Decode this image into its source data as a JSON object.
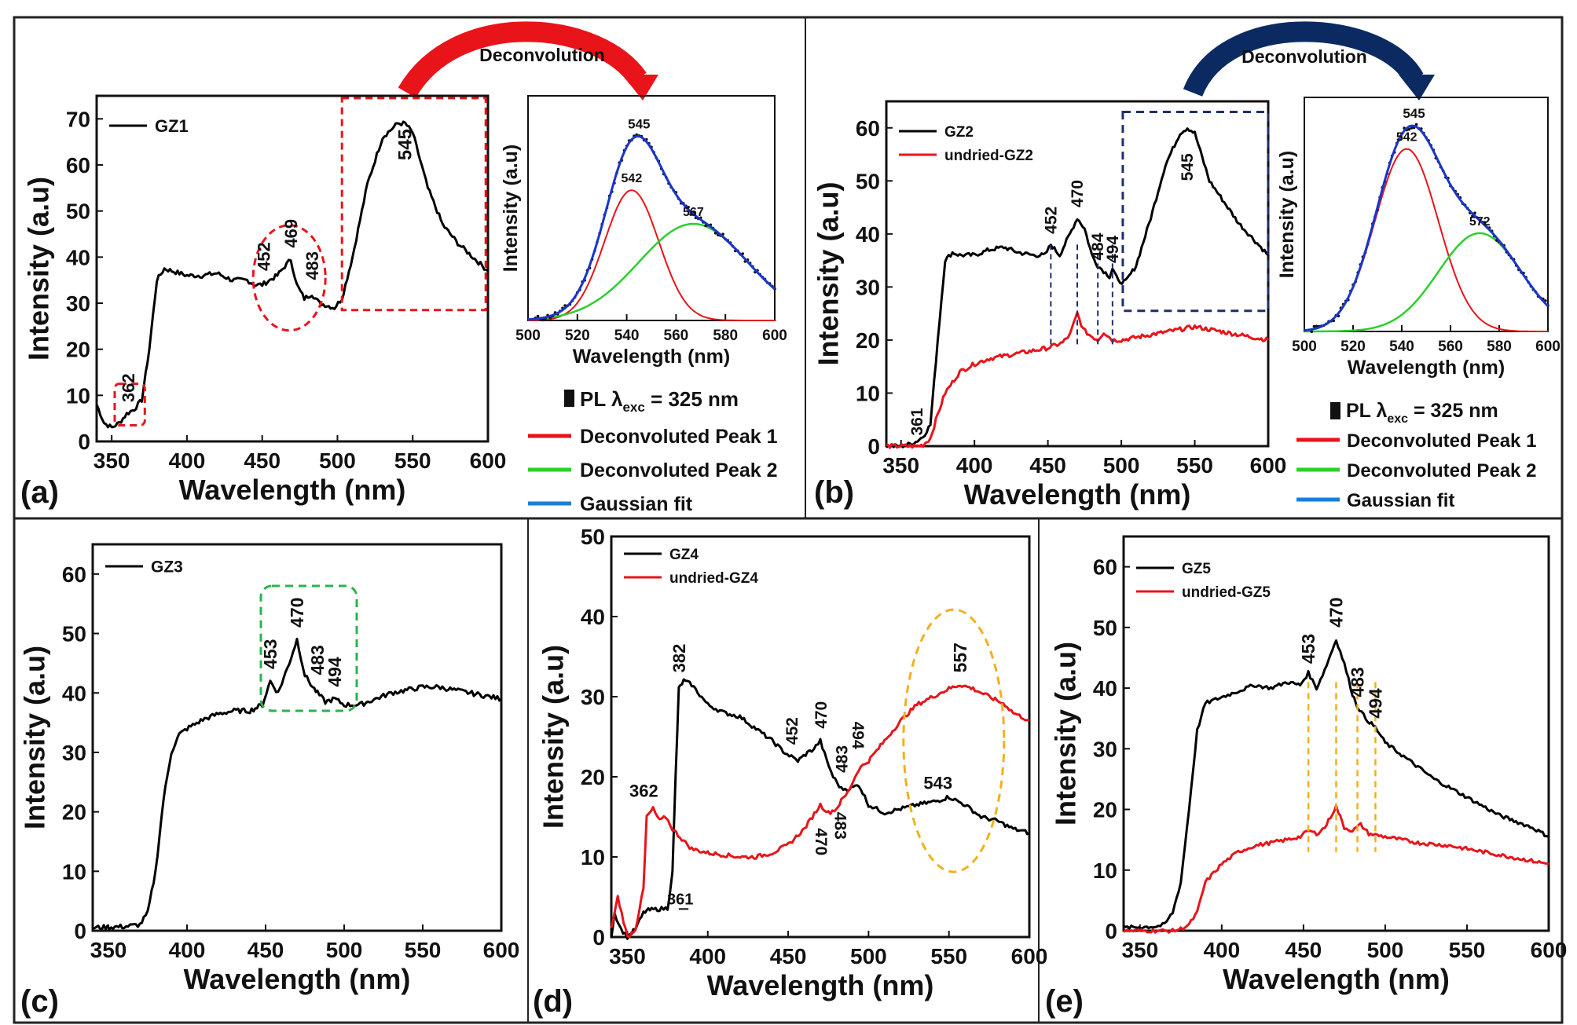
{
  "chart_data": [
    {
      "panel": "a",
      "type": "line",
      "xlabel": "Wavelength (nm)",
      "ylabel": "Intensity (a.u)",
      "xlim": [
        340,
        600
      ],
      "ylim": [
        0,
        75
      ],
      "xticks": [
        350,
        400,
        450,
        500,
        550,
        600
      ],
      "yticks": [
        0,
        10,
        20,
        30,
        40,
        50,
        60,
        70
      ],
      "series": [
        {
          "name": "GZ1",
          "color": "#000000",
          "x": [
            340,
            345,
            350,
            355,
            360,
            365,
            370,
            375,
            380,
            385,
            390,
            400,
            410,
            420,
            430,
            440,
            445,
            450,
            455,
            460,
            465,
            469,
            473,
            478,
            483,
            488,
            493,
            498,
            503,
            510,
            520,
            530,
            540,
            545,
            550,
            560,
            570,
            580,
            590,
            600
          ],
          "y": [
            8,
            4,
            3,
            4,
            6,
            7,
            9,
            20,
            35,
            37.5,
            37,
            36,
            36,
            36.5,
            35,
            35,
            34,
            34,
            35,
            36,
            38,
            39.5,
            34,
            31,
            32,
            30,
            29.5,
            29,
            31,
            40,
            56,
            66,
            69,
            69,
            67,
            55,
            47,
            43,
            40,
            37
          ]
        }
      ],
      "annotations": [
        {
          "x": 362,
          "y": 8.5,
          "text": "362"
        },
        {
          "x": 452,
          "y": 37,
          "text": "452"
        },
        {
          "x": 469,
          "y": 42,
          "text": "469"
        },
        {
          "x": 483,
          "y": 35,
          "text": "483"
        },
        {
          "x": 545,
          "y": 61,
          "text": "545"
        }
      ],
      "callout_label": "Deconvolution"
    },
    {
      "panel": "a-inset",
      "type": "line",
      "xlabel": "Wavelength (nm)",
      "ylabel": "Intensity (a.u)",
      "xlim": [
        500,
        600
      ],
      "ylim": [
        0,
        1
      ],
      "xticks": [
        500,
        520,
        540,
        560,
        580,
        600
      ],
      "series": [
        {
          "name": "PL λexc = 325 nm",
          "color": "#000000",
          "style": "points",
          "x": [],
          "y": []
        },
        {
          "name": "Deconvoluted Peak 1",
          "color": "#e8141a",
          "center": 542,
          "amplitude": 0.58,
          "width": 11
        },
        {
          "name": "Deconvoluted Peak 2",
          "color": "#2ccf2c",
          "center": 567,
          "amplitude": 0.43,
          "width": 22
        },
        {
          "name": "Gaussian fit",
          "color": "#1a36c8"
        }
      ],
      "annotations": [
        {
          "x": 545,
          "text": "545"
        },
        {
          "x": 542,
          "text": "542"
        },
        {
          "x": 567,
          "text": "567"
        }
      ]
    },
    {
      "panel": "b",
      "type": "line",
      "xlabel": "Wavelength (nm)",
      "ylabel": "Intensity (a.u)",
      "xlim": [
        340,
        600
      ],
      "ylim": [
        0,
        65
      ],
      "xticks": [
        350,
        400,
        450,
        500,
        550,
        600
      ],
      "yticks": [
        0,
        10,
        20,
        30,
        40,
        50,
        60
      ],
      "series": [
        {
          "name": "GZ2",
          "color": "#000000",
          "x": [
            340,
            350,
            355,
            360,
            365,
            370,
            375,
            380,
            385,
            390,
            400,
            410,
            420,
            430,
            440,
            448,
            452,
            458,
            465,
            470,
            475,
            480,
            484,
            488,
            492,
            494,
            498,
            503,
            510,
            520,
            530,
            540,
            545,
            550,
            560,
            570,
            580,
            590,
            600
          ],
          "y": [
            0,
            0,
            0.3,
            0.8,
            1.8,
            4,
            20,
            35,
            36.5,
            36,
            36,
            37,
            37.5,
            36.5,
            36,
            36,
            38,
            36,
            40,
            43,
            41,
            36,
            34,
            33,
            32,
            33.5,
            31,
            31,
            34,
            43,
            53,
            59,
            60,
            59,
            50,
            46,
            42,
            39,
            36
          ]
        },
        {
          "name": "undried-GZ2",
          "color": "#e8141a",
          "x": [
            340,
            360,
            365,
            370,
            375,
            380,
            385,
            390,
            400,
            410,
            420,
            430,
            440,
            450,
            460,
            465,
            470,
            474,
            478,
            484,
            488,
            494,
            500,
            520,
            540,
            550,
            560,
            580,
            600
          ],
          "y": [
            0,
            0,
            0.2,
            1.5,
            6,
            10,
            12,
            14,
            15.5,
            16.5,
            17,
            17.5,
            18,
            18.5,
            19.5,
            21,
            25,
            22,
            21,
            20,
            21.5,
            20,
            20,
            21,
            22,
            22.5,
            22,
            21,
            20
          ]
        }
      ],
      "annotations": [
        {
          "x": 361,
          "y": 2,
          "text": "361"
        },
        {
          "x": 452,
          "y": 40,
          "text": "452"
        },
        {
          "x": 470,
          "y": 45,
          "text": "470"
        },
        {
          "x": 484,
          "y": 35,
          "text": "484"
        },
        {
          "x": 494,
          "y": 34.5,
          "text": "494"
        },
        {
          "x": 545,
          "y": 50,
          "text": "545"
        }
      ],
      "callout_label": "Deconvolution"
    },
    {
      "panel": "b-inset",
      "type": "line",
      "xlabel": "Wavelength (nm)",
      "ylabel": "Intensity (a.u)",
      "xlim": [
        500,
        600
      ],
      "ylim": [
        0,
        1
      ],
      "xticks": [
        500,
        520,
        540,
        560,
        580,
        600
      ],
      "series": [
        {
          "name": "PL λexc = 325 nm",
          "color": "#000000",
          "style": "points",
          "x": [],
          "y": []
        },
        {
          "name": "Deconvoluted Peak 1",
          "color": "#e8141a",
          "center": 542,
          "amplitude": 0.78,
          "width": 13
        },
        {
          "name": "Deconvoluted Peak 2",
          "color": "#2ccf2c",
          "center": 572,
          "amplitude": 0.42,
          "width": 17
        },
        {
          "name": "Gaussian fit",
          "color": "#1a36c8"
        }
      ],
      "annotations": [
        {
          "x": 545,
          "text": "545"
        },
        {
          "x": 542,
          "text": "542"
        },
        {
          "x": 572,
          "text": "572"
        }
      ]
    },
    {
      "panel": "c",
      "type": "line",
      "xlabel": "Wavelength (nm)",
      "ylabel": "Intensity (a.u)",
      "xlim": [
        340,
        600
      ],
      "ylim": [
        0,
        65
      ],
      "xticks": [
        350,
        400,
        450,
        500,
        550,
        600
      ],
      "yticks": [
        0,
        10,
        20,
        30,
        40,
        50,
        60
      ],
      "series": [
        {
          "name": "GZ3",
          "color": "#000000",
          "x": [
            340,
            360,
            370,
            375,
            380,
            385,
            390,
            395,
            400,
            410,
            420,
            430,
            440,
            448,
            453,
            458,
            465,
            470,
            475,
            480,
            483,
            488,
            494,
            500,
            510,
            520,
            530,
            540,
            550,
            560,
            570,
            580,
            590,
            600
          ],
          "y": [
            0.5,
            0.7,
            1,
            3,
            10,
            22,
            30,
            33,
            34,
            35.5,
            36.5,
            37,
            37,
            38,
            42,
            40,
            45,
            49,
            43,
            41,
            40,
            38.5,
            39,
            38,
            38,
            39,
            40,
            40.5,
            41,
            41,
            40.5,
            40,
            39.5,
            39
          ]
        }
      ],
      "annotations": [
        {
          "x": 453,
          "y": 44,
          "text": "453"
        },
        {
          "x": 470,
          "y": 51,
          "text": "470"
        },
        {
          "x": 483,
          "y": 43,
          "text": "483"
        },
        {
          "x": 494,
          "y": 41,
          "text": "494"
        }
      ]
    },
    {
      "panel": "d",
      "type": "line",
      "xlabel": "Wavelength (nm)",
      "ylabel": "Intensity (a.u)",
      "xlim": [
        340,
        600
      ],
      "ylim": [
        0,
        50
      ],
      "xticks": [
        350,
        400,
        450,
        500,
        550,
        600
      ],
      "yticks": [
        0,
        10,
        20,
        30,
        40,
        50
      ],
      "series": [
        {
          "name": "GZ4",
          "color": "#000000",
          "x": [
            340,
            342,
            346,
            350,
            355,
            360,
            362,
            365,
            370,
            375,
            378,
            380,
            382,
            385,
            390,
            400,
            410,
            420,
            430,
            440,
            448,
            452,
            456,
            462,
            466,
            470,
            474,
            478,
            483,
            488,
            494,
            500,
            510,
            520,
            530,
            543,
            550,
            560,
            570,
            580,
            590,
            600
          ],
          "y": [
            0,
            3,
            1,
            0,
            1,
            3,
            3.3,
            3.4,
            3.5,
            3.6,
            8,
            20,
            31,
            32,
            31.5,
            29,
            28,
            27.5,
            26,
            24.5,
            23,
            22.5,
            22,
            23,
            23.5,
            24.5,
            22,
            20,
            18.5,
            18.5,
            19,
            16.5,
            15.5,
            16,
            16.5,
            17,
            17.5,
            16.5,
            15,
            14.5,
            13.5,
            13
          ]
        },
        {
          "name": "undried-GZ4",
          "color": "#e8141a",
          "x": [
            340,
            344,
            350,
            355,
            360,
            362,
            366,
            370,
            374,
            378,
            385,
            390,
            400,
            420,
            430,
            440,
            450,
            460,
            465,
            470,
            475,
            480,
            483,
            487,
            494,
            500,
            510,
            520,
            530,
            540,
            550,
            557,
            565,
            575,
            585,
            590,
            600
          ],
          "y": [
            1,
            5,
            0,
            1,
            6,
            15,
            16,
            14.5,
            15,
            13.5,
            12,
            11,
            10.5,
            10,
            10,
            10.5,
            11.5,
            13.5,
            15,
            16.5,
            15.5,
            16,
            17,
            18,
            21,
            22,
            24.5,
            27,
            29,
            30,
            31,
            31.5,
            31,
            30,
            29,
            28,
            27
          ]
        }
      ],
      "annotations": [
        {
          "x": 361,
          "y": 3.5,
          "text": "361"
        },
        {
          "x": 362,
          "y": 17.5,
          "text": "362"
        },
        {
          "x": 382,
          "y": 33,
          "text": "382"
        },
        {
          "x": 452,
          "y": 24,
          "text": "452"
        },
        {
          "x": 470,
          "y": 26,
          "text": "470"
        },
        {
          "x": 470,
          "y": 14,
          "text": "470"
        },
        {
          "x": 483,
          "y": 20.5,
          "text": "483"
        },
        {
          "x": 483,
          "y": 16,
          "text": "483"
        },
        {
          "x": 494,
          "y": 22,
          "text": "494"
        },
        {
          "x": 543,
          "y": 18.5,
          "text": "543"
        },
        {
          "x": 557,
          "y": 33,
          "text": "557"
        }
      ]
    },
    {
      "panel": "e",
      "type": "line",
      "xlabel": "Wavelength (nm)",
      "ylabel": "Intensity (a.u)",
      "xlim": [
        340,
        600
      ],
      "ylim": [
        0,
        65
      ],
      "xticks": [
        350,
        400,
        450,
        500,
        550,
        600
      ],
      "yticks": [
        0,
        10,
        20,
        30,
        40,
        50,
        60
      ],
      "series": [
        {
          "name": "GZ5",
          "color": "#000000",
          "x": [
            340,
            360,
            365,
            370,
            375,
            380,
            385,
            390,
            400,
            410,
            420,
            430,
            440,
            448,
            453,
            458,
            463,
            470,
            475,
            480,
            483,
            488,
            494,
            500,
            510,
            520,
            530,
            540,
            550,
            560,
            570,
            580,
            590,
            600
          ],
          "y": [
            0.5,
            0.7,
            1,
            3,
            8,
            20,
            33,
            37.5,
            38.5,
            39.5,
            40.5,
            40,
            41,
            40.5,
            42.5,
            40,
            43,
            48,
            44,
            39,
            37,
            35,
            33.5,
            31,
            29,
            27,
            25,
            23.5,
            22,
            20.5,
            19,
            18,
            17,
            15.5
          ]
        },
        {
          "name": "undried-GZ5",
          "color": "#e8141a",
          "x": [
            340,
            370,
            375,
            380,
            385,
            390,
            400,
            410,
            420,
            430,
            440,
            448,
            453,
            458,
            463,
            470,
            475,
            480,
            485,
            490,
            500,
            520,
            540,
            560,
            580,
            600
          ],
          "y": [
            0,
            0,
            0.3,
            1,
            3,
            8,
            11,
            13,
            14,
            14.5,
            15,
            15.5,
            16.5,
            16,
            17,
            20.5,
            17,
            16.5,
            17.5,
            16,
            15.5,
            14.5,
            14,
            13,
            12,
            11
          ]
        }
      ],
      "annotations": [
        {
          "x": 453,
          "y": 44,
          "text": "453"
        },
        {
          "x": 470,
          "y": 50,
          "text": "470"
        },
        {
          "x": 483,
          "y": 38.5,
          "text": "483"
        },
        {
          "x": 494,
          "y": 35,
          "text": "494"
        }
      ]
    }
  ],
  "panel_labels": [
    "(a)",
    "(b)",
    "(c)",
    "(d)",
    "(e)"
  ],
  "legend_inset": {
    "title": "PL λexc = 325 nm",
    "title_main": "PL λ",
    "title_sub": "exc",
    "title_tail": " = 325 nm",
    "peak1": "Deconvoluted Peak 1",
    "peak2": "Deconvoluted Peak 2",
    "fit": "Gaussian fit"
  },
  "colors": {
    "black": "#000000",
    "red": "#e8141a",
    "green": "#2ccf2c",
    "blue": "#1a36c8",
    "legend_fit": "#1a7fd6",
    "dash_red": "#e8141a",
    "dash_navy": "#1c2f6e",
    "dash_green": "#2bb24a",
    "dash_orange": "#f2b01e"
  }
}
